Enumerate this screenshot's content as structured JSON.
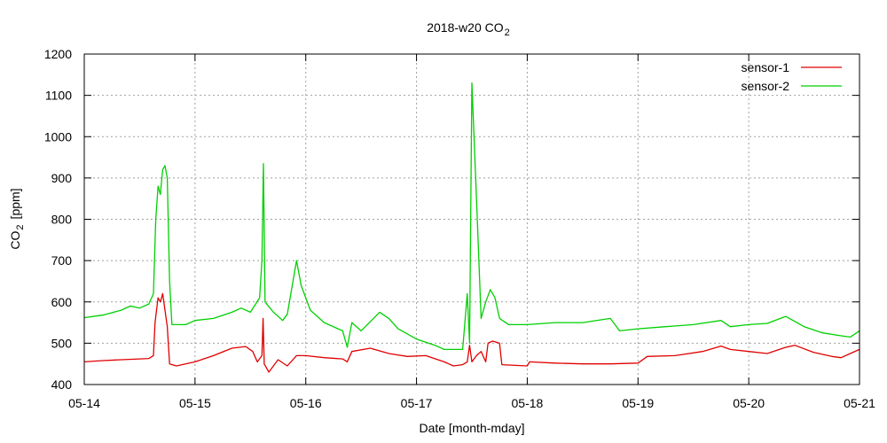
{
  "chart_data": {
    "type": "line",
    "title": "2018-w20 CO",
    "title_subscript": "2",
    "xlabel": "Date [month-mday]",
    "ylabel": "CO",
    "ylabel_subscript": "2",
    "ylabel_unit": "[ppm]",
    "xlim": [
      "2018-05-14",
      "2018-05-21"
    ],
    "ylim": [
      400,
      1200
    ],
    "x_ticks": [
      "05-14",
      "05-15",
      "05-16",
      "05-17",
      "05-18",
      "05-19",
      "05-20",
      "05-21"
    ],
    "y_ticks": [
      400,
      500,
      600,
      700,
      800,
      900,
      1000,
      1100,
      1200
    ],
    "grid": true,
    "legend_position": "top-right",
    "series": [
      {
        "name": "sensor-1",
        "color": "#e00000",
        "points": [
          [
            "2018-05-14 00:00",
            455
          ],
          [
            "2018-05-14 04:00",
            458
          ],
          [
            "2018-05-14 08:00",
            460
          ],
          [
            "2018-05-14 12:00",
            462
          ],
          [
            "2018-05-14 14:00",
            463
          ],
          [
            "2018-05-14 15:00",
            470
          ],
          [
            "2018-05-14 15:20",
            550
          ],
          [
            "2018-05-14 16:00",
            610
          ],
          [
            "2018-05-14 16:30",
            600
          ],
          [
            "2018-05-14 17:00",
            620
          ],
          [
            "2018-05-14 17:30",
            580
          ],
          [
            "2018-05-14 18:00",
            540
          ],
          [
            "2018-05-14 18:30",
            450
          ],
          [
            "2018-05-14 20:00",
            445
          ],
          [
            "2018-05-15 00:00",
            455
          ],
          [
            "2018-05-15 04:00",
            470
          ],
          [
            "2018-05-15 08:00",
            488
          ],
          [
            "2018-05-15 11:00",
            492
          ],
          [
            "2018-05-15 12:30",
            480
          ],
          [
            "2018-05-15 13:30",
            455
          ],
          [
            "2018-05-15 14:30",
            470
          ],
          [
            "2018-05-15 14:45",
            560
          ],
          [
            "2018-05-15 15:00",
            450
          ],
          [
            "2018-05-15 16:00",
            430
          ],
          [
            "2018-05-15 18:00",
            460
          ],
          [
            "2018-05-15 20:00",
            445
          ],
          [
            "2018-05-15 22:00",
            470
          ],
          [
            "2018-05-16 00:00",
            470
          ],
          [
            "2018-05-16 04:00",
            465
          ],
          [
            "2018-05-16 08:00",
            462
          ],
          [
            "2018-05-16 09:00",
            455
          ],
          [
            "2018-05-16 10:00",
            480
          ],
          [
            "2018-05-16 14:00",
            488
          ],
          [
            "2018-05-16 18:00",
            475
          ],
          [
            "2018-05-16 22:00",
            468
          ],
          [
            "2018-05-17 02:00",
            470
          ],
          [
            "2018-05-17 06:00",
            455
          ],
          [
            "2018-05-17 08:00",
            445
          ],
          [
            "2018-05-17 10:00",
            448
          ],
          [
            "2018-05-17 11:00",
            455
          ],
          [
            "2018-05-17 11:30",
            495
          ],
          [
            "2018-05-17 12:00",
            455
          ],
          [
            "2018-05-17 13:00",
            470
          ],
          [
            "2018-05-17 14:00",
            480
          ],
          [
            "2018-05-17 15:00",
            455
          ],
          [
            "2018-05-17 15:30",
            500
          ],
          [
            "2018-05-17 16:30",
            505
          ],
          [
            "2018-05-17 18:00",
            500
          ],
          [
            "2018-05-17 18:30",
            448
          ],
          [
            "2018-05-18 00:00",
            445
          ],
          [
            "2018-05-18 00:30",
            455
          ],
          [
            "2018-05-18 06:00",
            452
          ],
          [
            "2018-05-18 12:00",
            450
          ],
          [
            "2018-05-18 18:00",
            450
          ],
          [
            "2018-05-19 00:00",
            452
          ],
          [
            "2018-05-19 02:00",
            468
          ],
          [
            "2018-05-19 08:00",
            470
          ],
          [
            "2018-05-19 14:00",
            480
          ],
          [
            "2018-05-19 18:00",
            493
          ],
          [
            "2018-05-19 20:00",
            485
          ],
          [
            "2018-05-20 00:00",
            480
          ],
          [
            "2018-05-20 04:00",
            475
          ],
          [
            "2018-05-20 08:00",
            490
          ],
          [
            "2018-05-20 10:00",
            495
          ],
          [
            "2018-05-20 14:00",
            478
          ],
          [
            "2018-05-20 18:00",
            468
          ],
          [
            "2018-05-20 20:00",
            465
          ],
          [
            "2018-05-20 22:00",
            475
          ],
          [
            "2018-05-21 00:00",
            485
          ]
        ]
      },
      {
        "name": "sensor-2",
        "color": "#00d000",
        "points": [
          [
            "2018-05-14 00:00",
            562
          ],
          [
            "2018-05-14 04:00",
            568
          ],
          [
            "2018-05-14 08:00",
            580
          ],
          [
            "2018-05-14 10:00",
            590
          ],
          [
            "2018-05-14 12:00",
            585
          ],
          [
            "2018-05-14 14:00",
            595
          ],
          [
            "2018-05-14 15:00",
            620
          ],
          [
            "2018-05-14 15:30",
            800
          ],
          [
            "2018-05-14 16:00",
            880
          ],
          [
            "2018-05-14 16:30",
            860
          ],
          [
            "2018-05-14 17:00",
            920
          ],
          [
            "2018-05-14 17:30",
            930
          ],
          [
            "2018-05-14 18:00",
            900
          ],
          [
            "2018-05-14 18:30",
            650
          ],
          [
            "2018-05-14 19:00",
            545
          ],
          [
            "2018-05-14 22:00",
            545
          ],
          [
            "2018-05-15 00:00",
            555
          ],
          [
            "2018-05-15 04:00",
            560
          ],
          [
            "2018-05-15 08:00",
            575
          ],
          [
            "2018-05-15 10:00",
            585
          ],
          [
            "2018-05-15 12:00",
            575
          ],
          [
            "2018-05-15 14:00",
            610
          ],
          [
            "2018-05-15 14:30",
            700
          ],
          [
            "2018-05-15 14:50",
            935
          ],
          [
            "2018-05-15 15:10",
            600
          ],
          [
            "2018-05-15 17:00",
            575
          ],
          [
            "2018-05-15 19:00",
            555
          ],
          [
            "2018-05-15 20:00",
            570
          ],
          [
            "2018-05-15 22:00",
            700
          ],
          [
            "2018-05-15 23:00",
            640
          ],
          [
            "2018-05-16 01:00",
            580
          ],
          [
            "2018-05-16 04:00",
            550
          ],
          [
            "2018-05-16 08:00",
            530
          ],
          [
            "2018-05-16 09:00",
            490
          ],
          [
            "2018-05-16 10:00",
            550
          ],
          [
            "2018-05-16 12:00",
            530
          ],
          [
            "2018-05-16 16:00",
            575
          ],
          [
            "2018-05-16 18:00",
            560
          ],
          [
            "2018-05-16 20:00",
            535
          ],
          [
            "2018-05-17 00:00",
            510
          ],
          [
            "2018-05-17 04:00",
            495
          ],
          [
            "2018-05-17 06:00",
            485
          ],
          [
            "2018-05-17 10:00",
            485
          ],
          [
            "2018-05-17 11:00",
            620
          ],
          [
            "2018-05-17 11:30",
            500
          ],
          [
            "2018-05-17 12:00",
            1130
          ],
          [
            "2018-05-17 13:00",
            850
          ],
          [
            "2018-05-17 14:00",
            560
          ],
          [
            "2018-05-17 15:00",
            600
          ],
          [
            "2018-05-17 16:00",
            630
          ],
          [
            "2018-05-17 17:00",
            610
          ],
          [
            "2018-05-17 18:00",
            560
          ],
          [
            "2018-05-17 20:00",
            545
          ],
          [
            "2018-05-18 00:00",
            545
          ],
          [
            "2018-05-18 06:00",
            550
          ],
          [
            "2018-05-18 12:00",
            550
          ],
          [
            "2018-05-18 18:00",
            560
          ],
          [
            "2018-05-18 20:00",
            530
          ],
          [
            "2018-05-19 00:00",
            535
          ],
          [
            "2018-05-19 06:00",
            540
          ],
          [
            "2018-05-19 12:00",
            545
          ],
          [
            "2018-05-19 18:00",
            555
          ],
          [
            "2018-05-19 20:00",
            540
          ],
          [
            "2018-05-20 00:00",
            545
          ],
          [
            "2018-05-20 04:00",
            548
          ],
          [
            "2018-05-20 08:00",
            565
          ],
          [
            "2018-05-20 12:00",
            540
          ],
          [
            "2018-05-20 16:00",
            525
          ],
          [
            "2018-05-20 20:00",
            518
          ],
          [
            "2018-05-20 22:00",
            515
          ],
          [
            "2018-05-21 00:00",
            530
          ]
        ]
      }
    ]
  }
}
